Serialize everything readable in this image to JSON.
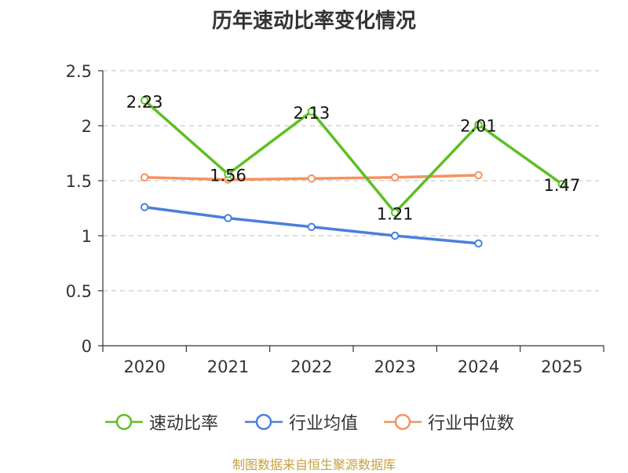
{
  "chart_data": {
    "type": "line",
    "title": "历年速动比率变化情况",
    "categories": [
      "2020",
      "2021",
      "2022",
      "2023",
      "2024",
      "2025"
    ],
    "ylim": [
      0,
      2.5
    ],
    "yticks": [
      "0",
      "0.5",
      "1",
      "1.5",
      "2",
      "2.5"
    ],
    "grid": true,
    "legend_position": "bottom",
    "series": [
      {
        "name": "速动比率",
        "values": [
          2.23,
          1.56,
          2.13,
          1.21,
          2.01,
          1.47
        ],
        "labels": [
          "2.23",
          "1.56",
          "2.13",
          "1.21",
          "2.01",
          "1.47"
        ],
        "color": "#5cc023"
      },
      {
        "name": "行业均值",
        "values": [
          1.26,
          1.16,
          1.08,
          1.0,
          0.93,
          null
        ],
        "color": "#4a7fdc"
      },
      {
        "name": "行业中位数",
        "values": [
          1.53,
          1.51,
          1.52,
          1.53,
          1.55,
          null
        ],
        "color": "#f5925e"
      }
    ]
  },
  "footer": {
    "source": "制图数据来自恒生聚源数据库"
  }
}
